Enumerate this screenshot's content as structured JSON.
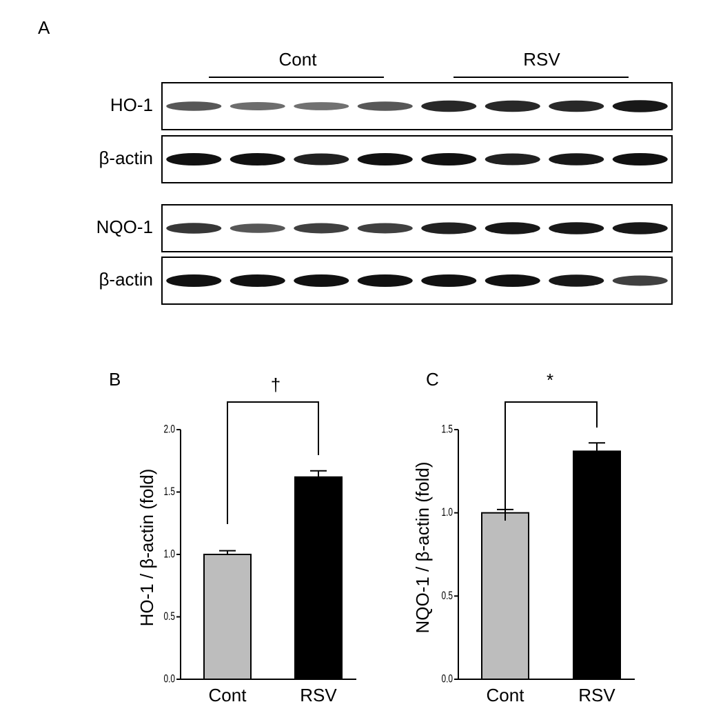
{
  "figure": {
    "panels": [
      "A",
      "B",
      "C"
    ],
    "groups": [
      "Cont",
      "RSV"
    ],
    "blot_rows": [
      "HO-1",
      "β-actin",
      "NQO-1",
      "β-actin"
    ]
  },
  "chart_data": [
    {
      "type": "bar",
      "ylabel": "HO-1 / β-actin (fold)",
      "categories": [
        "Cont",
        "RSV"
      ],
      "values": [
        1.0,
        1.62
      ],
      "errors": [
        0.03,
        0.05
      ],
      "colors": [
        "#bdbdbd",
        "#000000"
      ],
      "ylim": [
        0,
        2.0
      ],
      "yticks": [
        {
          "value": 0,
          "label": "0.0"
        },
        0.5,
        {
          "value": 1,
          "label": "1.0"
        },
        1.5,
        {
          "value": 2,
          "label": "2.0"
        }
      ],
      "annotation": "†"
    },
    {
      "type": "bar",
      "ylabel": "NQO-1 / β-actin (fold)",
      "categories": [
        "Cont",
        "RSV"
      ],
      "values": [
        1.0,
        1.37
      ],
      "errors": [
        0.02,
        0.05
      ],
      "colors": [
        "#bdbdbd",
        "#000000"
      ],
      "ylim": [
        0,
        1.5
      ],
      "yticks": [
        {
          "value": 0,
          "label": "0.0"
        },
        0.5,
        {
          "value": 1,
          "label": "1.0"
        },
        1.5
      ],
      "annotation": "*"
    }
  ]
}
